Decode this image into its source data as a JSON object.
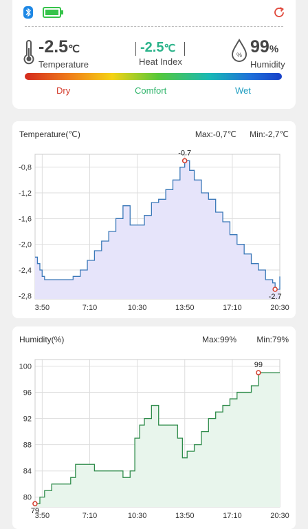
{
  "status": {
    "bluetooth_icon": "bluetooth-icon",
    "battery_icon": "battery-full-icon",
    "refresh_icon": "refresh-icon"
  },
  "reading": {
    "temperature_value": "-2.5",
    "temperature_unit": "℃",
    "temperature_label": "Temperature",
    "heat_index_value": "-2.5",
    "heat_index_unit": "℃",
    "heat_index_label": "Heat Index",
    "humidity_value": "99",
    "humidity_unit": "%",
    "humidity_label": "Humidity"
  },
  "comfort_scale": {
    "dry": "Dry",
    "comfort": "Comfort",
    "wet": "Wet"
  },
  "colors": {
    "heat_index": "#2bb38a",
    "temp_line": "#3a78b8",
    "temp_fill": "#e6e4fa",
    "hum_line": "#2e8b4a",
    "hum_fill": "#e8f5ec",
    "marker": "#d43b2c"
  },
  "temperature_chart": {
    "title": "Temperature(℃)",
    "max_label": "Max:-0,7℃",
    "min_label": "Min:-2,7℃",
    "max_marker": "-0.7",
    "min_marker": "-2.7"
  },
  "humidity_chart": {
    "title": "Humidity(%)",
    "max_label": "Max:99%",
    "min_label": "Min:79%",
    "max_marker": "99",
    "min_marker": "79"
  },
  "chart_data": [
    {
      "type": "line",
      "title": "Temperature(℃)",
      "xlabel": "",
      "ylabel": "",
      "x_ticks": [
        "3:50",
        "7:10",
        "10:30",
        "13:50",
        "17:10",
        "20:30"
      ],
      "y_ticks": [
        "-0,8",
        "-1,2",
        "-1,6",
        "-2,0",
        "-2,4",
        "-2,8"
      ],
      "ylim": [
        -2.85,
        -0.6
      ],
      "xlim": [
        3.333,
        20.5
      ],
      "grid": true,
      "series": [
        {
          "x": [
            3.33,
            3.5,
            3.67,
            3.83,
            4.0,
            4.5,
            5.0,
            5.5,
            6.0,
            6.5,
            7.0,
            7.5,
            8.0,
            8.5,
            9.0,
            9.5,
            10.0,
            10.5,
            11.0,
            11.5,
            12.0,
            12.5,
            13.0,
            13.5,
            13.83,
            14.17,
            14.5,
            15.0,
            15.5,
            16.0,
            16.5,
            17.0,
            17.5,
            18.0,
            18.5,
            19.0,
            19.5,
            20.0,
            20.17,
            20.5
          ],
          "y": [
            -2.2,
            -2.3,
            -2.4,
            -2.5,
            -2.55,
            -2.55,
            -2.55,
            -2.55,
            -2.5,
            -2.4,
            -2.25,
            -2.1,
            -1.95,
            -1.8,
            -1.6,
            -1.4,
            -1.7,
            -1.7,
            -1.55,
            -1.35,
            -1.3,
            -1.15,
            -1.0,
            -0.8,
            -0.7,
            -0.85,
            -1.0,
            -1.2,
            -1.3,
            -1.5,
            -1.65,
            -1.85,
            -2.0,
            -2.15,
            -2.3,
            -2.4,
            -2.55,
            -2.6,
            -2.7,
            -2.5
          ]
        }
      ]
    },
    {
      "type": "area",
      "title": "Humidity(%)",
      "xlabel": "",
      "ylabel": "",
      "x_ticks": [
        "3:50",
        "7:10",
        "10:30",
        "13:50",
        "17:10",
        "20:30"
      ],
      "y_ticks": [
        "100",
        "96",
        "92",
        "88",
        "84",
        "80"
      ],
      "ylim": [
        78.5,
        101
      ],
      "xlim": [
        3.333,
        20.5
      ],
      "grid": true,
      "series": [
        {
          "x": [
            3.33,
            3.67,
            4.0,
            4.5,
            5.0,
            5.5,
            5.83,
            6.17,
            6.5,
            7.0,
            7.5,
            8.0,
            8.5,
            9.0,
            9.5,
            10.0,
            10.33,
            10.67,
            11.0,
            11.5,
            12.0,
            12.5,
            13.0,
            13.33,
            13.67,
            14.0,
            14.5,
            15.0,
            15.5,
            16.0,
            16.5,
            17.0,
            17.5,
            18.0,
            18.5,
            19.0,
            19.5,
            20.0,
            20.5
          ],
          "y": [
            79,
            80,
            81,
            82,
            82,
            82,
            83,
            85,
            85,
            85,
            84,
            84,
            84,
            84,
            83,
            84,
            89,
            91,
            92,
            94,
            91,
            91,
            91,
            89,
            86,
            87,
            88,
            90,
            92,
            93,
            94,
            95,
            96,
            96,
            97,
            99,
            99,
            99,
            99
          ]
        }
      ]
    }
  ]
}
